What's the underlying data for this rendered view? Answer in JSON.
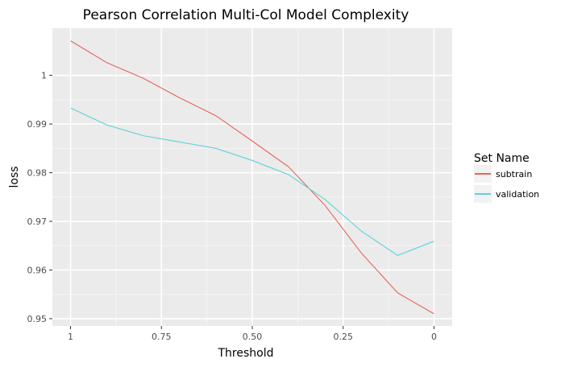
{
  "chart_data": {
    "type": "line",
    "title": "Pearson Correlation Multi-Col Model Complexity",
    "xlabel": "Threshold",
    "ylabel": "loss",
    "x": [
      1,
      0.9,
      0.8,
      0.7,
      0.6,
      0.5,
      0.4,
      0.3,
      0.2,
      0.1,
      0
    ],
    "xlim": [
      1.0,
      0.0
    ],
    "x_reversed": true,
    "xticks": [
      1,
      0.75,
      0.5,
      0.25,
      0
    ],
    "xtick_labels": [
      "1",
      "0.75",
      "0.50",
      "0.25",
      "0"
    ],
    "ylim": [
      0.9485,
      1.0097
    ],
    "yticks": [
      0.95,
      0.96,
      0.97,
      0.98,
      0.99,
      1.0
    ],
    "ytick_labels": [
      "0.95",
      "0.96",
      "0.97",
      "0.98",
      "0.99",
      "1"
    ],
    "grid": true,
    "legend": {
      "title": "Set Name",
      "placement": "right"
    },
    "series": [
      {
        "name": "subtrain",
        "color": "#E2665B",
        "values": [
          1.0071,
          1.0026,
          0.9994,
          0.9954,
          0.9917,
          0.9865,
          0.9812,
          0.9733,
          0.9635,
          0.9553,
          0.951
        ]
      },
      {
        "name": "validation",
        "color": "#5ED2DA",
        "values": [
          0.9933,
          0.9898,
          0.9876,
          0.9863,
          0.985,
          0.9825,
          0.9796,
          0.9745,
          0.968,
          0.963,
          0.9659
        ]
      }
    ]
  }
}
